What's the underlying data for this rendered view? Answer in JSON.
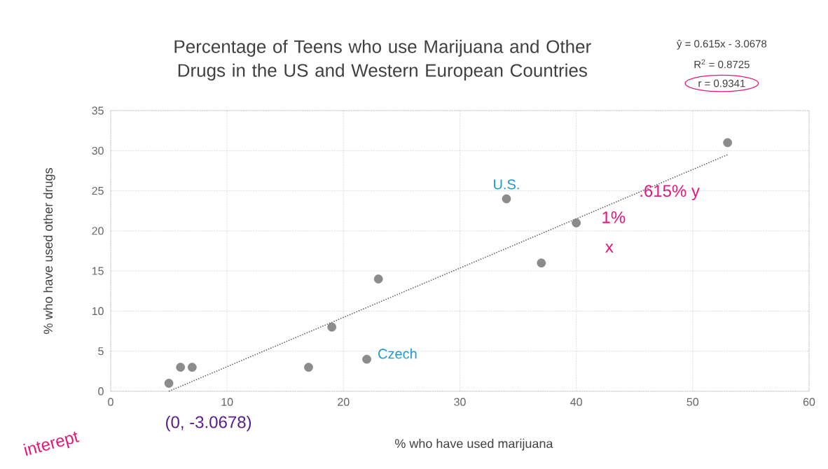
{
  "chart_data": {
    "type": "scatter",
    "title": "Percentage of Teens who use Marijuana and Other Drugs in the US and Western European Countries",
    "xlabel": "% who have used marijuana",
    "ylabel": "% who have used other drugs",
    "xlim": [
      0,
      60
    ],
    "ylim": [
      0,
      35
    ],
    "xticks": [
      0,
      10,
      20,
      30,
      40,
      50,
      60
    ],
    "yticks": [
      0,
      5,
      10,
      15,
      20,
      25,
      30,
      35
    ],
    "grid": true,
    "series": [
      {
        "color": "#8c8c8c",
        "marker": "circle",
        "x": [
          5,
          6,
          7,
          17,
          19,
          22,
          23,
          34,
          37,
          40,
          53
        ],
        "values": [
          1,
          3,
          3,
          3,
          8,
          4,
          14,
          24,
          16,
          21,
          31
        ]
      },
      {
        "type": "line",
        "color": "#595959",
        "marker": "none",
        "line_style": "dotted",
        "x": [
          5,
          53
        ],
        "values": [
          0,
          29.5
        ]
      }
    ],
    "annotations": [
      "ŷ = 0.615x - 3.0678",
      "R$^{2}$ = 0.8725",
      "r = 0.9341",
      {
        "text": "U.S.",
        "x": 34,
        "y": 24
      },
      {
        "text": "Czech",
        "x": 22,
        "y": 4
      },
      "interept",
      "(0, -3.0678)",
      ".615% y",
      "1%",
      "x"
    ]
  }
}
